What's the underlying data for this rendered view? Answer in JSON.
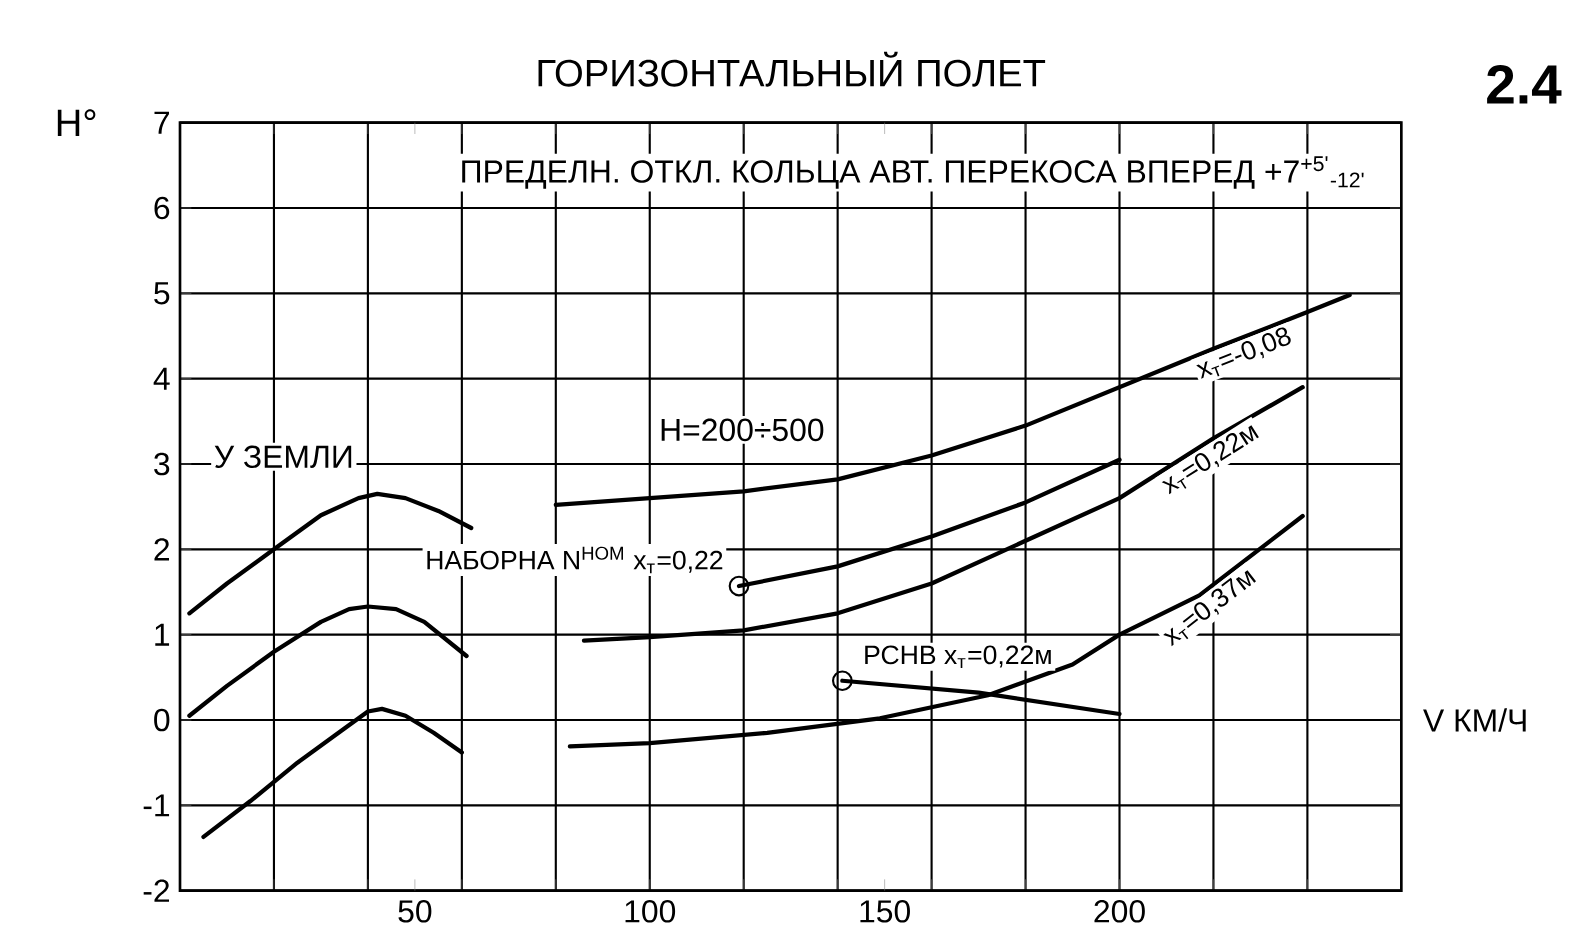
{
  "chart_data": {
    "type": "line",
    "title": "ГОРИЗОНТАЛЬНЫЙ ПОЛЕТ",
    "subtitle": "ПРЕДЕЛН. ОТКЛ. КОЛЬЦА АВТ. ПЕРЕКОСА ВПЕРЕД +7$^{+5'}$$_{-12'}$",
    "xlabel": "V КМ/Ч",
    "ylabel": "Н°",
    "annotations": [
      "2.4",
      "У ЗЕМЛИ",
      "H=200÷500"
    ],
    "xlim": [
      0,
      260
    ],
    "ylim": [
      -2,
      7
    ],
    "xticks": [
      {
        "value": 20,
        "label": null
      },
      {
        "value": 40,
        "label": null
      },
      50,
      {
        "value": 60,
        "label": null
      },
      {
        "value": 80,
        "label": null
      },
      100,
      {
        "value": 120,
        "label": null
      },
      {
        "value": 140,
        "label": null
      },
      150,
      {
        "value": 160,
        "label": null
      },
      {
        "value": 180,
        "label": null
      },
      200,
      {
        "value": 220,
        "label": null
      },
      {
        "value": 240,
        "label": null
      }
    ],
    "yticks": [
      -2,
      -1,
      0,
      1,
      2,
      3,
      4,
      5,
      6,
      7
    ],
    "grid": true,
    "line_style": "solid",
    "series": [
      {
        "color": "#000000",
        "x": [
          2,
          10,
          20,
          30,
          38,
          42,
          48,
          55,
          62
        ],
        "values": [
          1.25,
          1.6,
          2.0,
          2.4,
          2.6,
          2.65,
          2.6,
          2.45,
          2.25
        ]
      },
      {
        "color": "#000000",
        "x": [
          2,
          10,
          20,
          30,
          36,
          40,
          46,
          52,
          61
        ],
        "values": [
          0.05,
          0.4,
          0.8,
          1.15,
          1.3,
          1.33,
          1.3,
          1.15,
          0.75
        ]
      },
      {
        "color": "#000000",
        "x": [
          5,
          15,
          25,
          35,
          40,
          43,
          48,
          54,
          60
        ],
        "values": [
          -1.37,
          -0.95,
          -0.5,
          -0.1,
          0.1,
          0.13,
          0.05,
          -0.15,
          -0.38
        ]
      },
      {
        "name": "x$_{т}$=-0,08",
        "color": "#000000",
        "x": [
          80,
          100,
          120,
          140,
          160,
          180,
          200,
          220,
          240,
          249
        ],
        "values": [
          2.52,
          2.6,
          2.68,
          2.82,
          3.1,
          3.45,
          3.9,
          4.35,
          4.78,
          4.98
        ]
      },
      {
        "name": "x$_{т}$=0,22м",
        "color": "#000000",
        "x": [
          86,
          100,
          120,
          140,
          160,
          180,
          200,
          220,
          239
        ],
        "values": [
          0.93,
          0.97,
          1.05,
          1.25,
          1.6,
          2.1,
          2.6,
          3.3,
          3.9
        ]
      },
      {
        "name": "x$_{т}$=0,37м",
        "color": "#000000",
        "x": [
          83,
          100,
          125,
          149,
          172,
          190,
          200,
          217,
          239
        ],
        "values": [
          -0.31,
          -0.27,
          -0.15,
          0.02,
          0.29,
          0.65,
          1.0,
          1.46,
          2.39
        ]
      },
      {
        "name": "НАБОРНА N$^{НОМ}$ x$_{т}$=0,22",
        "color": "#000000",
        "x": [
          119,
          140,
          160,
          180,
          200
        ],
        "values": [
          1.57,
          1.8,
          2.15,
          2.55,
          3.05
        ]
      },
      {
        "name": "РСНВ x$_{т}$=0,22м",
        "color": "#000000",
        "x": [
          141,
          170,
          200
        ],
        "values": [
          0.46,
          0.32,
          0.07
        ]
      },
      {
        "type": "scatter",
        "marker": "circle",
        "color": "#000000",
        "x": [
          119
        ],
        "values": [
          1.57
        ]
      },
      {
        "type": "scatter",
        "marker": "circle",
        "color": "#000000",
        "x": [
          141
        ],
        "values": [
          0.46
        ]
      }
    ]
  }
}
